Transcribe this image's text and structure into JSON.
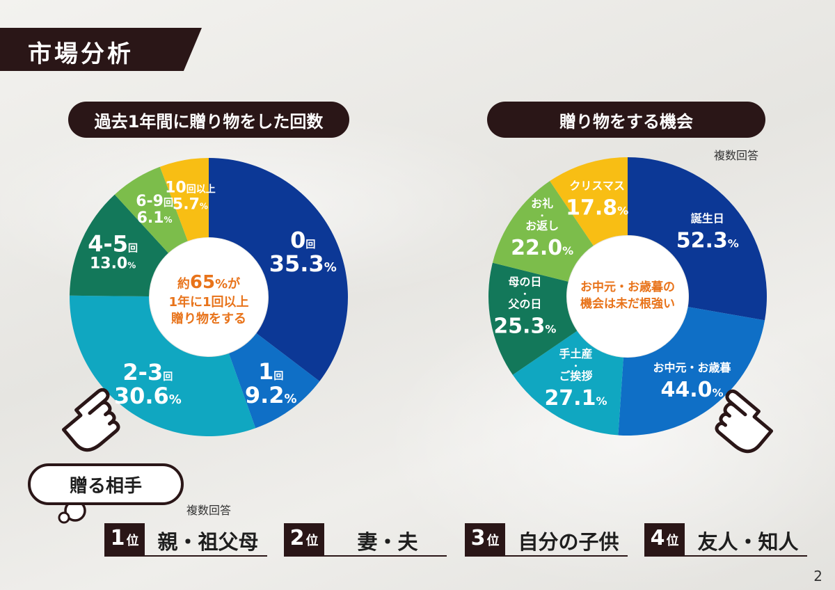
{
  "page": {
    "title": "市場分析",
    "page_number": "2"
  },
  "left_chart": {
    "heading": "過去1年間に贈り物をした回数",
    "center_lines": [
      {
        "pre": "約",
        "big": "65",
        "post": "%が"
      },
      {
        "pre": "1年に1回以上",
        "big": "",
        "post": ""
      },
      {
        "pre": "贈り物をする",
        "big": "",
        "post": ""
      }
    ]
  },
  "right_chart": {
    "heading": "贈り物をする機会",
    "note": "複数回答",
    "center_lines": [
      "お中元・お歳暮の",
      "機会は未だ根強い"
    ]
  },
  "recipients": {
    "heading": "贈る相手",
    "note": "複数回答",
    "ranks": [
      {
        "num": "1",
        "unit": "位",
        "label": "親・祖父母"
      },
      {
        "num": "2",
        "unit": "位",
        "label": "妻・夫"
      },
      {
        "num": "3",
        "unit": "位",
        "label": "自分の子供"
      },
      {
        "num": "4",
        "unit": "位",
        "label": "友人・知人"
      }
    ]
  },
  "chart_data": [
    {
      "type": "pie",
      "donut": true,
      "title": "過去1年間に贈り物をした回数",
      "categories": [
        "0回",
        "1回",
        "2-3回",
        "4-5回",
        "6-9回",
        "10回以上"
      ],
      "values": [
        35.3,
        9.2,
        30.6,
        13.0,
        6.1,
        5.7
      ],
      "colors": [
        "#0c3896",
        "#0f6fc6",
        "#10a7c1",
        "#13785a",
        "#7cbd4b",
        "#f8be14"
      ],
      "labels": [
        {
          "lines": [
            {
              "text": "0",
              "size": "big"
            },
            {
              "text": "回",
              "size": "small"
            }
          ],
          "value": "35.3",
          "unit": "%",
          "size": "big"
        },
        {
          "lines": [
            {
              "text": "1",
              "size": "big"
            },
            {
              "text": "回",
              "size": "small"
            }
          ],
          "value": "9.2",
          "unit": "%",
          "size": "big"
        },
        {
          "lines": [
            {
              "text": "2-3",
              "size": "big"
            },
            {
              "text": "回",
              "size": "small"
            }
          ],
          "value": "30.6",
          "unit": "%",
          "size": "big"
        },
        {
          "lines": [
            {
              "text": "4-5",
              "size": "big"
            },
            {
              "text": "回",
              "size": "small"
            }
          ],
          "value": "13.0",
          "unit": "%",
          "size": "mid"
        },
        {
          "lines": [
            {
              "text": "6-9",
              "size": "mid"
            },
            {
              "text": "回",
              "size": "small"
            }
          ],
          "value": "6.1",
          "unit": "%",
          "size": "mid"
        },
        {
          "lines": [
            {
              "text": "10",
              "size": "mid"
            },
            {
              "text": "回以上",
              "size": "small"
            }
          ],
          "value": "5.7",
          "unit": "%",
          "size": "mid"
        }
      ]
    },
    {
      "type": "pie",
      "donut": true,
      "title": "贈り物をする機会",
      "multiple_answers": true,
      "categories": [
        "誕生日",
        "お中元・お歳暮",
        "手土産・ご挨拶",
        "母の日・父の日",
        "お礼・お返し",
        "クリスマス"
      ],
      "values": [
        52.3,
        44.0,
        27.1,
        25.3,
        22.0,
        17.8
      ],
      "colors": [
        "#0c3896",
        "#0f6fc6",
        "#10a7c1",
        "#13785a",
        "#7cbd4b",
        "#f8be14"
      ],
      "labels": [
        {
          "names": [
            "誕生日"
          ],
          "value": "52.3",
          "unit": "%"
        },
        {
          "names": [
            "お中元・お歳暮"
          ],
          "value": "44.0",
          "unit": "%"
        },
        {
          "names": [
            "手土産",
            "・",
            "ご挨拶"
          ],
          "value": "27.1",
          "unit": "%"
        },
        {
          "names": [
            "母の日",
            "・",
            "父の日"
          ],
          "value": "25.3",
          "unit": "%"
        },
        {
          "names": [
            "お礼",
            "・",
            "お返し"
          ],
          "value": "22.0",
          "unit": "%"
        },
        {
          "names": [
            "クリスマス"
          ],
          "value": "17.8",
          "unit": "%"
        }
      ]
    }
  ],
  "icons": {
    "left_pointer": "pointing-hand-icon",
    "right_pointer": "pointing-hand-icon",
    "speech_tail": "speech-bubble-tail-icon"
  },
  "colors": {
    "dark": "#2a1617",
    "accent_orange": "#e8731a",
    "white": "#ffffff"
  }
}
